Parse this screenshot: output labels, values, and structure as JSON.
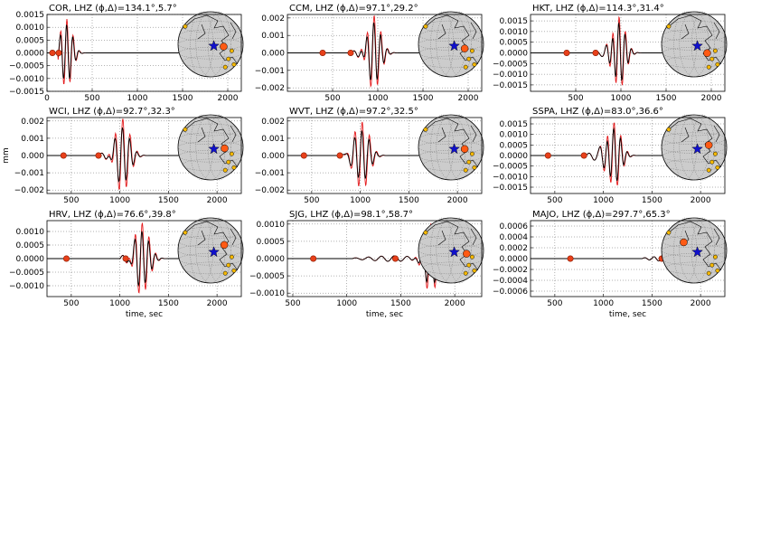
{
  "colors": {
    "observed": "#000000",
    "synthetic": "#e41a1c",
    "pick_marker": "#e8401a",
    "globe_fill": "#cccccc",
    "event_star": "#1010cc",
    "station_current": "#ff5a14",
    "station_other": "#f5b800"
  },
  "chart_data": [
    {
      "type": "line",
      "station": "COR",
      "title": "COR, LHZ (ϕ,Δ)=134.1°,5.7°",
      "xlim": [
        0,
        2150
      ],
      "ylim": [
        -0.0015,
        0.0015
      ],
      "xticks": [
        0,
        500,
        1000,
        1500,
        2000
      ],
      "xticklabels": [
        "0",
        "500",
        "1000",
        "1500",
        "2000"
      ],
      "yticks": [
        -0.0015,
        -0.001,
        -0.0005,
        0.0,
        0.0005,
        0.001,
        0.0015
      ],
      "yticklabels": [
        "−0.0015",
        "−0.0010",
        "−0.0005",
        "0.0000",
        "0.0005",
        "0.0010",
        "0.0015"
      ],
      "xlabel": "",
      "ylabel": "",
      "grid": true,
      "wave": {
        "start": 120,
        "arrival": 220,
        "amp_syn": 0.00135,
        "amp_obs": 0.00115,
        "period": 70,
        "pre_amp": 0.0002,
        "decay": 140,
        "end": 650
      },
      "picks_x": [
        60,
        130
      ],
      "globe": {
        "event_station_offset": [
          0.3,
          0.02
        ]
      }
    },
    {
      "type": "line",
      "station": "CCM",
      "title": "CCM, LHZ (ϕ,Δ)=97.1°,29.2°",
      "xlim": [
        0,
        2150
      ],
      "ylim": [
        -0.0022,
        0.0022
      ],
      "xticks": [
        500,
        1000,
        1500,
        2000
      ],
      "xticklabels": [
        "500",
        "1000",
        "1500",
        "2000"
      ],
      "yticks": [
        -0.002,
        -0.001,
        0.0,
        0.001,
        0.002
      ],
      "yticklabels": [
        "−0.002",
        "−0.001",
        "0.000",
        "0.001",
        "0.002"
      ],
      "xlabel": "",
      "ylabel": "",
      "grid": true,
      "wave": {
        "start": 700,
        "arrival": 960,
        "amp_syn": 0.0021,
        "amp_obs": 0.0017,
        "period": 75,
        "pre_amp": 0.00025,
        "decay": 170,
        "end": 1450
      },
      "picks_x": [
        390,
        700
      ],
      "globe": {
        "event_station_offset": [
          0.32,
          0.08
        ]
      }
    },
    {
      "type": "line",
      "station": "HKT",
      "title": "HKT, LHZ (ϕ,Δ)=114.3°,31.4°",
      "xlim": [
        0,
        2150
      ],
      "ylim": [
        -0.0018,
        0.0018
      ],
      "xticks": [
        500,
        1000,
        1500,
        2000
      ],
      "xticklabels": [
        "500",
        "1000",
        "1500",
        "2000"
      ],
      "yticks": [
        -0.0015,
        -0.001,
        -0.0005,
        0.0,
        0.0005,
        0.001,
        0.0015
      ],
      "yticklabels": [
        "−0.0015",
        "−0.0010",
        "−0.0005",
        "0.0000",
        "0.0005",
        "0.0010",
        "0.0015"
      ],
      "xlabel": "",
      "ylabel": "",
      "grid": true,
      "wave": {
        "start": 700,
        "arrival": 980,
        "amp_syn": 0.0017,
        "amp_obs": 0.0014,
        "period": 70,
        "pre_amp": 0.0002,
        "decay": 160,
        "end": 1450
      },
      "picks_x": [
        400,
        720
      ],
      "globe": {
        "event_station_offset": [
          0.3,
          0.22
        ]
      }
    },
    {
      "type": "line",
      "station": "WCI",
      "title": "WCI, LHZ (ϕ,Δ)=92.7°,32.3°",
      "xlim": [
        250,
        2250
      ],
      "ylim": [
        -0.0022,
        0.0022
      ],
      "xticks": [
        500,
        1000,
        1500,
        2000
      ],
      "xticklabels": [
        "500",
        "1000",
        "1500",
        "2000"
      ],
      "yticks": [
        -0.002,
        -0.001,
        0.0,
        0.001,
        0.002
      ],
      "yticklabels": [
        "−0.002",
        "−0.001",
        "0.000",
        "0.001",
        "0.002"
      ],
      "xlabel": "",
      "ylabel": "mm",
      "grid": true,
      "wave": {
        "start": 780,
        "arrival": 1030,
        "amp_syn": 0.0021,
        "amp_obs": 0.0016,
        "period": 75,
        "pre_amp": 0.0003,
        "decay": 170,
        "end": 1550
      },
      "picks_x": [
        420,
        780
      ],
      "globe": {
        "event_station_offset": [
          0.33,
          -0.02
        ]
      }
    },
    {
      "type": "line",
      "station": "WVT",
      "title": "WVT, LHZ (ϕ,Δ)=97.2°,32.5°",
      "xlim": [
        250,
        2250
      ],
      "ylim": [
        -0.0022,
        0.0022
      ],
      "xticks": [
        500,
        1000,
        1500,
        2000
      ],
      "xticklabels": [
        "500",
        "1000",
        "1500",
        "2000"
      ],
      "yticks": [
        -0.002,
        -0.001,
        0.0,
        0.001,
        0.002
      ],
      "yticklabels": [
        "−0.002",
        "−0.001",
        "0.000",
        "0.001",
        "0.002"
      ],
      "xlabel": "",
      "ylabel": "",
      "grid": true,
      "wave": {
        "start": 800,
        "arrival": 1020,
        "amp_syn": 0.002,
        "amp_obs": 0.0015,
        "period": 75,
        "pre_amp": 0.00025,
        "decay": 170,
        "end": 1550
      },
      "picks_x": [
        420,
        790
      ],
      "globe": {
        "event_station_offset": [
          0.32,
          0.0
        ]
      }
    },
    {
      "type": "line",
      "station": "SSPA",
      "title": "SSPA, LHZ (ϕ,Δ)=83.0°,36.6°",
      "xlim": [
        250,
        2250
      ],
      "ylim": [
        -0.0018,
        0.0018
      ],
      "xticks": [
        500,
        1000,
        1500,
        2000
      ],
      "xticklabels": [
        "500",
        "1000",
        "1500",
        "2000"
      ],
      "yticks": [
        -0.0015,
        -0.001,
        -0.0005,
        0.0,
        0.0005,
        0.001,
        0.0015
      ],
      "yticklabels": [
        "−0.0015",
        "−0.0010",
        "−0.0005",
        "0.0000",
        "0.0005",
        "0.0010",
        "0.0015"
      ],
      "xlabel": "",
      "ylabel": "",
      "grid": true,
      "wave": {
        "start": 820,
        "arrival": 1110,
        "amp_syn": 0.0016,
        "amp_obs": 0.0013,
        "period": 70,
        "pre_amp": 0.0003,
        "decay": 160,
        "end": 1650
      },
      "picks_x": [
        430,
        800
      ],
      "globe": {
        "event_station_offset": [
          0.35,
          -0.12
        ]
      }
    },
    {
      "type": "line",
      "station": "HRV",
      "title": "HRV, LHZ (ϕ,Δ)=76.6°,39.8°",
      "xlim": [
        250,
        2250
      ],
      "ylim": [
        -0.0014,
        0.0014
      ],
      "xticks": [
        500,
        1000,
        1500,
        2000
      ],
      "xticklabels": [
        "500",
        "1000",
        "1500",
        "2000"
      ],
      "yticks": [
        -0.001,
        -0.0005,
        0.0,
        0.0005,
        0.001
      ],
      "yticklabels": [
        "−0.0010",
        "−0.0005",
        "0.0000",
        "0.0005",
        "0.0010"
      ],
      "xlabel": "time, sec",
      "ylabel": "",
      "grid": true,
      "wave": {
        "start": 1000,
        "arrival": 1230,
        "amp_syn": 0.0013,
        "amp_obs": 0.001,
        "period": 70,
        "pre_amp": 0.00025,
        "decay": 170,
        "end": 1700
      },
      "picks_x": [
        450,
        1060
      ],
      "globe": {
        "event_station_offset": [
          0.32,
          -0.22
        ]
      }
    },
    {
      "type": "line",
      "station": "SJG",
      "title": "SJG, LHZ (ϕ,Δ)=98.1°,58.7°",
      "xlim": [
        450,
        2250
      ],
      "ylim": [
        -0.0011,
        0.0011
      ],
      "xticks": [
        500,
        1000,
        1500,
        2000
      ],
      "xticklabels": [
        "500",
        "1000",
        "1500",
        "2000"
      ],
      "yticks": [
        -0.001,
        -0.0005,
        0.0,
        0.0005,
        0.001
      ],
      "yticklabels": [
        "−0.0010",
        "−0.0005",
        "0.0000",
        "0.0005",
        "0.0010"
      ],
      "xlabel": "time, sec",
      "ylabel": "",
      "grid": true,
      "wave": {
        "start": 1050,
        "arrival": 1780,
        "amp_syn": 0.001,
        "amp_obs": 0.0008,
        "period": 75,
        "pre_amp": 8e-05,
        "decay": 150,
        "end": 2050
      },
      "picks_x": [
        690,
        1450
      ],
      "globe": {
        "event_station_offset": [
          0.38,
          0.05
        ]
      }
    },
    {
      "type": "line",
      "station": "MAJO",
      "title": "MAJO, LHZ (ϕ,Δ)=297.7°,65.3°",
      "xlim": [
        250,
        2250
      ],
      "ylim": [
        -0.0007,
        0.0007
      ],
      "xticks": [
        500,
        1000,
        1500,
        2000
      ],
      "xticklabels": [
        "500",
        "1000",
        "1500",
        "2000"
      ],
      "yticks": [
        -0.0006,
        -0.0004,
        -0.0002,
        0.0,
        0.0002,
        0.0004,
        0.0006
      ],
      "yticklabels": [
        "−0.0006",
        "−0.0004",
        "−0.0002",
        "0.0000",
        "0.0002",
        "0.0004",
        "0.0006"
      ],
      "xlabel": "time, sec",
      "ylabel": "",
      "grid": true,
      "wave": {
        "start": 1400,
        "arrival": 2000,
        "amp_syn": 0.0007,
        "amp_obs": 0.00012,
        "period": 60,
        "pre_amp": 6e-05,
        "decay": 40,
        "end": 2030
      },
      "picks_x": [
        660,
        1600
      ],
      "globe": {
        "event_station_offset": [
          -0.42,
          -0.3
        ]
      }
    }
  ]
}
